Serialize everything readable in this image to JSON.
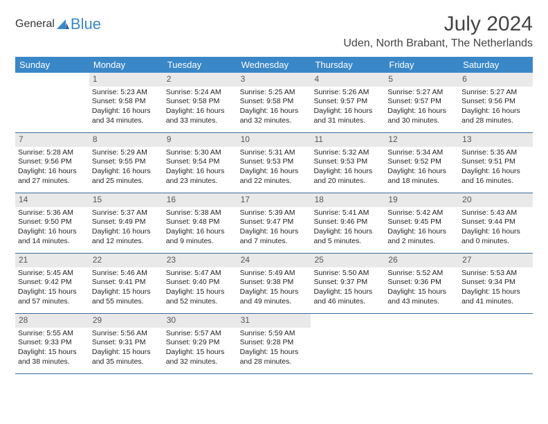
{
  "logo": {
    "text1": "General",
    "text2": "Blue"
  },
  "title": "July 2024",
  "location": "Uden, North Brabant, The Netherlands",
  "colors": {
    "header_bg": "#3a87c7",
    "daynum_bg": "#e9e9e9",
    "week_border": "#3a6b9a",
    "logo_accent": "#3a87c7"
  },
  "day_names": [
    "Sunday",
    "Monday",
    "Tuesday",
    "Wednesday",
    "Thursday",
    "Friday",
    "Saturday"
  ],
  "weeks": [
    [
      {
        "n": "",
        "sr": "",
        "ss": "",
        "dl": ""
      },
      {
        "n": "1",
        "sr": "Sunrise: 5:23 AM",
        "ss": "Sunset: 9:58 PM",
        "dl": "Daylight: 16 hours and 34 minutes."
      },
      {
        "n": "2",
        "sr": "Sunrise: 5:24 AM",
        "ss": "Sunset: 9:58 PM",
        "dl": "Daylight: 16 hours and 33 minutes."
      },
      {
        "n": "3",
        "sr": "Sunrise: 5:25 AM",
        "ss": "Sunset: 9:58 PM",
        "dl": "Daylight: 16 hours and 32 minutes."
      },
      {
        "n": "4",
        "sr": "Sunrise: 5:26 AM",
        "ss": "Sunset: 9:57 PM",
        "dl": "Daylight: 16 hours and 31 minutes."
      },
      {
        "n": "5",
        "sr": "Sunrise: 5:27 AM",
        "ss": "Sunset: 9:57 PM",
        "dl": "Daylight: 16 hours and 30 minutes."
      },
      {
        "n": "6",
        "sr": "Sunrise: 5:27 AM",
        "ss": "Sunset: 9:56 PM",
        "dl": "Daylight: 16 hours and 28 minutes."
      }
    ],
    [
      {
        "n": "7",
        "sr": "Sunrise: 5:28 AM",
        "ss": "Sunset: 9:56 PM",
        "dl": "Daylight: 16 hours and 27 minutes."
      },
      {
        "n": "8",
        "sr": "Sunrise: 5:29 AM",
        "ss": "Sunset: 9:55 PM",
        "dl": "Daylight: 16 hours and 25 minutes."
      },
      {
        "n": "9",
        "sr": "Sunrise: 5:30 AM",
        "ss": "Sunset: 9:54 PM",
        "dl": "Daylight: 16 hours and 23 minutes."
      },
      {
        "n": "10",
        "sr": "Sunrise: 5:31 AM",
        "ss": "Sunset: 9:53 PM",
        "dl": "Daylight: 16 hours and 22 minutes."
      },
      {
        "n": "11",
        "sr": "Sunrise: 5:32 AM",
        "ss": "Sunset: 9:53 PM",
        "dl": "Daylight: 16 hours and 20 minutes."
      },
      {
        "n": "12",
        "sr": "Sunrise: 5:34 AM",
        "ss": "Sunset: 9:52 PM",
        "dl": "Daylight: 16 hours and 18 minutes."
      },
      {
        "n": "13",
        "sr": "Sunrise: 5:35 AM",
        "ss": "Sunset: 9:51 PM",
        "dl": "Daylight: 16 hours and 16 minutes."
      }
    ],
    [
      {
        "n": "14",
        "sr": "Sunrise: 5:36 AM",
        "ss": "Sunset: 9:50 PM",
        "dl": "Daylight: 16 hours and 14 minutes."
      },
      {
        "n": "15",
        "sr": "Sunrise: 5:37 AM",
        "ss": "Sunset: 9:49 PM",
        "dl": "Daylight: 16 hours and 12 minutes."
      },
      {
        "n": "16",
        "sr": "Sunrise: 5:38 AM",
        "ss": "Sunset: 9:48 PM",
        "dl": "Daylight: 16 hours and 9 minutes."
      },
      {
        "n": "17",
        "sr": "Sunrise: 5:39 AM",
        "ss": "Sunset: 9:47 PM",
        "dl": "Daylight: 16 hours and 7 minutes."
      },
      {
        "n": "18",
        "sr": "Sunrise: 5:41 AM",
        "ss": "Sunset: 9:46 PM",
        "dl": "Daylight: 16 hours and 5 minutes."
      },
      {
        "n": "19",
        "sr": "Sunrise: 5:42 AM",
        "ss": "Sunset: 9:45 PM",
        "dl": "Daylight: 16 hours and 2 minutes."
      },
      {
        "n": "20",
        "sr": "Sunrise: 5:43 AM",
        "ss": "Sunset: 9:44 PM",
        "dl": "Daylight: 16 hours and 0 minutes."
      }
    ],
    [
      {
        "n": "21",
        "sr": "Sunrise: 5:45 AM",
        "ss": "Sunset: 9:42 PM",
        "dl": "Daylight: 15 hours and 57 minutes."
      },
      {
        "n": "22",
        "sr": "Sunrise: 5:46 AM",
        "ss": "Sunset: 9:41 PM",
        "dl": "Daylight: 15 hours and 55 minutes."
      },
      {
        "n": "23",
        "sr": "Sunrise: 5:47 AM",
        "ss": "Sunset: 9:40 PM",
        "dl": "Daylight: 15 hours and 52 minutes."
      },
      {
        "n": "24",
        "sr": "Sunrise: 5:49 AM",
        "ss": "Sunset: 9:38 PM",
        "dl": "Daylight: 15 hours and 49 minutes."
      },
      {
        "n": "25",
        "sr": "Sunrise: 5:50 AM",
        "ss": "Sunset: 9:37 PM",
        "dl": "Daylight: 15 hours and 46 minutes."
      },
      {
        "n": "26",
        "sr": "Sunrise: 5:52 AM",
        "ss": "Sunset: 9:36 PM",
        "dl": "Daylight: 15 hours and 43 minutes."
      },
      {
        "n": "27",
        "sr": "Sunrise: 5:53 AM",
        "ss": "Sunset: 9:34 PM",
        "dl": "Daylight: 15 hours and 41 minutes."
      }
    ],
    [
      {
        "n": "28",
        "sr": "Sunrise: 5:55 AM",
        "ss": "Sunset: 9:33 PM",
        "dl": "Daylight: 15 hours and 38 minutes."
      },
      {
        "n": "29",
        "sr": "Sunrise: 5:56 AM",
        "ss": "Sunset: 9:31 PM",
        "dl": "Daylight: 15 hours and 35 minutes."
      },
      {
        "n": "30",
        "sr": "Sunrise: 5:57 AM",
        "ss": "Sunset: 9:29 PM",
        "dl": "Daylight: 15 hours and 32 minutes."
      },
      {
        "n": "31",
        "sr": "Sunrise: 5:59 AM",
        "ss": "Sunset: 9:28 PM",
        "dl": "Daylight: 15 hours and 28 minutes."
      },
      {
        "n": "",
        "sr": "",
        "ss": "",
        "dl": ""
      },
      {
        "n": "",
        "sr": "",
        "ss": "",
        "dl": ""
      },
      {
        "n": "",
        "sr": "",
        "ss": "",
        "dl": ""
      }
    ]
  ]
}
